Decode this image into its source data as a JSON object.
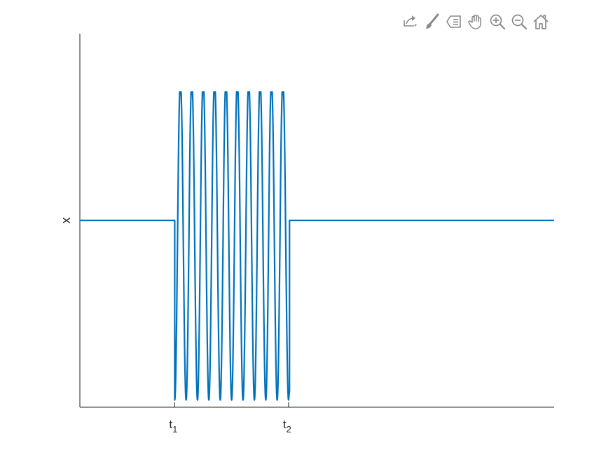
{
  "toolbar": {
    "buttons": [
      {
        "name": "export-button",
        "icon": "export-icon"
      },
      {
        "name": "brush-button",
        "icon": "brush-icon"
      },
      {
        "name": "datatip-button",
        "icon": "datatip-icon"
      },
      {
        "name": "pan-button",
        "icon": "pan-hand-icon"
      },
      {
        "name": "zoom-in-button",
        "icon": "zoom-in-icon"
      },
      {
        "name": "zoom-out-button",
        "icon": "zoom-out-icon"
      },
      {
        "name": "home-button",
        "icon": "home-icon"
      }
    ],
    "icon_color": "#8a8a8a"
  },
  "chart_data": {
    "type": "line",
    "title": "",
    "xlabel": "",
    "ylabel": "x",
    "xlim": [
      0,
      10
    ],
    "ylim": [
      -1.15,
      1.15
    ],
    "grid": false,
    "legend": false,
    "line_color": "#0072bd",
    "axis_color": "#262626",
    "xticks": [
      {
        "value": 2,
        "base": "t",
        "sub": "1"
      },
      {
        "value": 4.4,
        "base": "t",
        "sub": "2"
      }
    ],
    "signal": {
      "baseline": 0,
      "burst_start": 2,
      "burst_end": 4.4,
      "cycles": 10,
      "amplitude_low": -1.05,
      "amplitude_high": 0.85,
      "step_dip": -0.12
    }
  }
}
